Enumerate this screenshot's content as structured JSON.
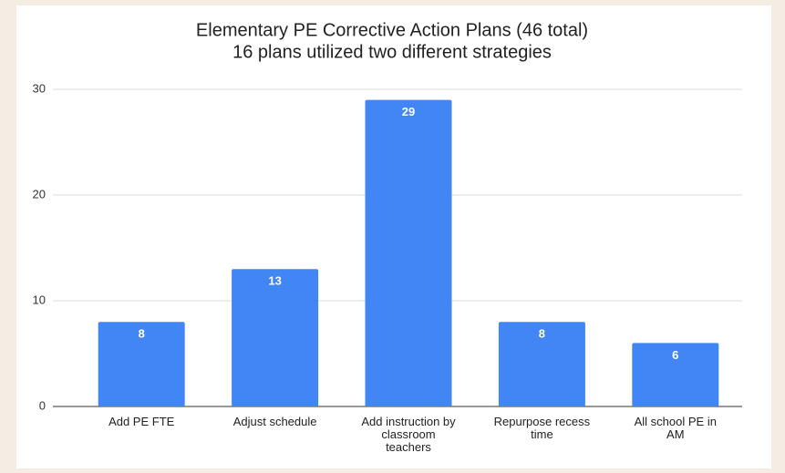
{
  "chart_data": {
    "type": "bar",
    "title": "Elementary PE Corrective Action Plans (46 total)",
    "subtitle": "16 plans utilized two different strategies",
    "categories": [
      "Add PE FTE",
      "Adjust schedule",
      "Add instruction by classroom teachers",
      "Repurpose recess time",
      "All school PE in AM"
    ],
    "values": [
      8,
      13,
      29,
      8,
      6
    ],
    "color": "#4285f4",
    "ylim": [
      0,
      30
    ],
    "yticks": [
      0,
      10,
      20,
      30
    ],
    "grid": true
  }
}
